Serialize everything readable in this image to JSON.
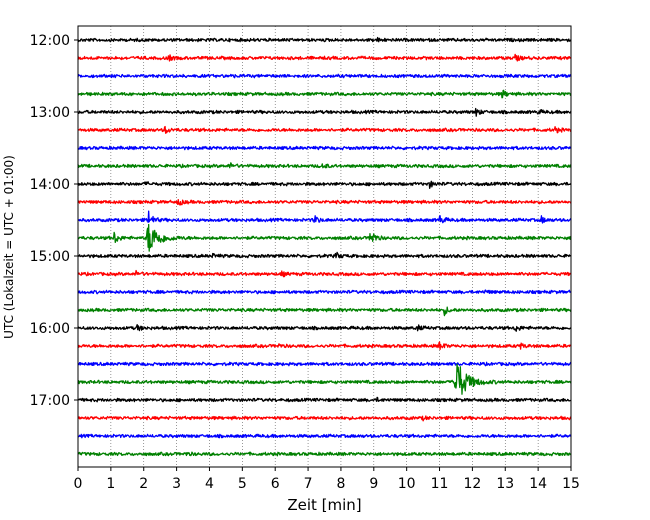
{
  "chart_data": {
    "type": "line",
    "title": "",
    "xlabel": "Zeit  [min]",
    "ylabel": "UTC (Lokalzeit = UTC + 01:00)",
    "xlim": [
      0,
      15
    ],
    "xticks": [
      "0",
      "1",
      "2",
      "3",
      "4",
      "5",
      "6",
      "7",
      "8",
      "9",
      "10",
      "11",
      "12",
      "13",
      "14",
      "15"
    ],
    "yticks": [
      {
        "label": "12:00",
        "trace": 0
      },
      {
        "label": "13:00",
        "trace": 4
      },
      {
        "label": "14:00",
        "trace": 8
      },
      {
        "label": "15:00",
        "trace": 12
      },
      {
        "label": "16:00",
        "trace": 16
      },
      {
        "label": "17:00",
        "trace": 20
      }
    ],
    "grid": "vertical dotted at each minute",
    "color_cycle": [
      "#000000",
      "#ff0000",
      "#0000ff",
      "#008000"
    ],
    "traces": [
      {
        "start": "12:00",
        "events": [
          {
            "t": 9.1,
            "amp": 0.12
          }
        ]
      },
      {
        "start": "12:15",
        "events": [
          {
            "t": 2.75,
            "amp": 0.28
          },
          {
            "t": 13.3,
            "amp": 0.3
          }
        ]
      },
      {
        "start": "12:30",
        "events": [
          {
            "t": 4.6,
            "amp": 0.1
          }
        ]
      },
      {
        "start": "12:45",
        "events": [
          {
            "t": 12.9,
            "amp": 0.4
          }
        ]
      },
      {
        "start": "13:00",
        "events": [
          {
            "t": 12.1,
            "amp": 0.35
          },
          {
            "t": 14.0,
            "amp": 0.15
          }
        ]
      },
      {
        "start": "13:15",
        "events": [
          {
            "t": 2.65,
            "amp": 0.35
          },
          {
            "t": 14.5,
            "amp": 0.28
          }
        ]
      },
      {
        "start": "13:30",
        "events": []
      },
      {
        "start": "13:45",
        "events": [
          {
            "t": 4.6,
            "amp": 0.3
          },
          {
            "t": 7.45,
            "amp": 0.25
          }
        ]
      },
      {
        "start": "14:00",
        "events": [
          {
            "t": 10.7,
            "amp": 0.3
          },
          {
            "t": 2.05,
            "amp": 0.12
          }
        ]
      },
      {
        "start": "14:15",
        "events": [
          {
            "t": 3.05,
            "amp": 0.35
          }
        ]
      },
      {
        "start": "14:30",
        "events": [
          {
            "t": 2.15,
            "amp": 0.9
          },
          {
            "t": 7.2,
            "amp": 0.4
          },
          {
            "t": 11.0,
            "amp": 0.45
          },
          {
            "t": 14.1,
            "amp": 0.3
          }
        ]
      },
      {
        "start": "14:45",
        "events": [
          {
            "t": 1.1,
            "amp": 0.6
          },
          {
            "t": 2.15,
            "amp": 1.6
          },
          {
            "t": 8.9,
            "amp": 1.0
          }
        ]
      },
      {
        "start": "15:00",
        "events": [
          {
            "t": 7.85,
            "amp": 0.3
          },
          {
            "t": 4.1,
            "amp": 0.15
          }
        ]
      },
      {
        "start": "15:15",
        "events": [
          {
            "t": 1.75,
            "amp": 0.25
          },
          {
            "t": 6.2,
            "amp": 0.2
          }
        ]
      },
      {
        "start": "15:30",
        "events": [
          {
            "t": 12.4,
            "amp": 0.12
          }
        ]
      },
      {
        "start": "15:45",
        "events": [
          {
            "t": 11.15,
            "amp": 0.4
          }
        ]
      },
      {
        "start": "16:00",
        "events": [
          {
            "t": 1.8,
            "amp": 0.25
          },
          {
            "t": 10.3,
            "amp": 0.3
          },
          {
            "t": 13.3,
            "amp": 0.35
          }
        ]
      },
      {
        "start": "16:15",
        "events": [
          {
            "t": 11.0,
            "amp": 0.4
          },
          {
            "t": 13.45,
            "amp": 0.25
          },
          {
            "t": 6.1,
            "amp": 0.15
          }
        ]
      },
      {
        "start": "16:30",
        "events": []
      },
      {
        "start": "16:45",
        "events": [
          {
            "t": 11.5,
            "amp": 2.4
          }
        ]
      },
      {
        "start": "17:00",
        "events": [
          {
            "t": 9.1,
            "amp": 0.12
          }
        ]
      },
      {
        "start": "17:15",
        "events": [
          {
            "t": 10.5,
            "amp": 0.12
          }
        ]
      },
      {
        "start": "17:30",
        "events": []
      },
      {
        "start": "17:45",
        "events": [
          {
            "t": 3.3,
            "amp": 0.12
          }
        ]
      }
    ]
  }
}
